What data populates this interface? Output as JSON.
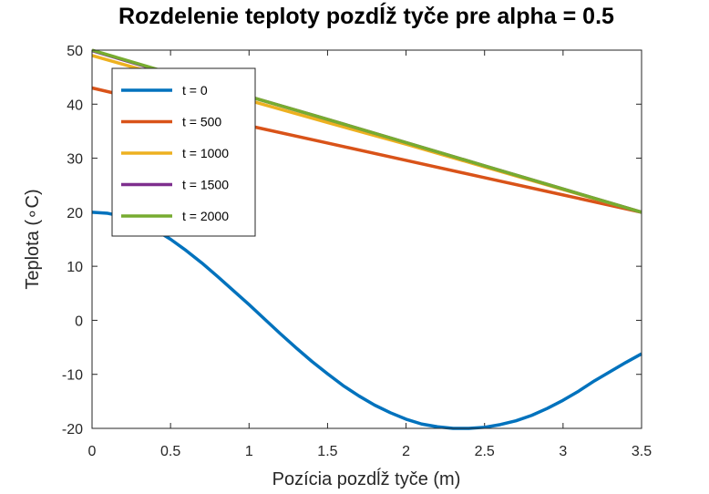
{
  "chart_data": {
    "type": "line",
    "title": "Rozdelenie teploty pozdĺž tyče pre alpha = 0.5",
    "xlabel": "Pozícia pozdĺž tyče (m)",
    "ylabel": "Teplota (∘C)",
    "xlim": [
      0,
      3.5
    ],
    "ylim": [
      -20,
      50
    ],
    "xticks": [
      0,
      0.5,
      1,
      1.5,
      2,
      2.5,
      3,
      3.5
    ],
    "xtick_labels": [
      "0",
      "0.5",
      "1",
      "1.5",
      "2",
      "2.5",
      "3",
      "3.5"
    ],
    "yticks": [
      -20,
      -10,
      0,
      10,
      20,
      30,
      40,
      50
    ],
    "ytick_labels": [
      "-20",
      "-10",
      "0",
      "10",
      "20",
      "30",
      "40",
      "50"
    ],
    "grid": false,
    "legend_position": "top-left",
    "series": [
      {
        "name": "t = 0",
        "color": "#0072BD",
        "x": [
          0,
          0.1,
          0.2,
          0.3,
          0.4,
          0.5,
          0.6,
          0.7,
          0.8,
          0.9,
          1.0,
          1.1,
          1.2,
          1.3,
          1.4,
          1.5,
          1.6,
          1.7,
          1.8,
          1.9,
          2.0,
          2.1,
          2.2,
          2.3,
          2.4,
          2.5,
          2.6,
          2.7,
          2.8,
          2.9,
          3.0,
          3.1,
          3.2,
          3.3,
          3.4,
          3.5
        ],
        "y": [
          20.0,
          19.8,
          19.2,
          18.2,
          16.8,
          15.0,
          12.9,
          10.6,
          8.1,
          5.5,
          2.9,
          0.2,
          -2.5,
          -5.1,
          -7.6,
          -9.9,
          -12.1,
          -14.0,
          -15.7,
          -17.1,
          -18.3,
          -19.2,
          -19.7,
          -20.0,
          -20.0,
          -19.8,
          -19.3,
          -18.6,
          -17.6,
          -16.3,
          -14.8,
          -13.1,
          -11.2,
          -9.5,
          -7.8,
          -6.2
        ]
      },
      {
        "name": "t = 500",
        "color": "#D95319",
        "x": [
          0,
          0.5,
          1,
          1.5,
          2,
          2.5,
          3,
          3.5
        ],
        "y": [
          43.0,
          39.6,
          36.0,
          32.8,
          29.6,
          26.4,
          23.2,
          20.0
        ]
      },
      {
        "name": "t = 1000",
        "color": "#EDB120",
        "x": [
          0,
          0.5,
          1,
          1.5,
          2,
          2.5,
          3,
          3.5
        ],
        "y": [
          49.0,
          44.9,
          40.7,
          36.6,
          32.6,
          28.4,
          24.2,
          20.0
        ]
      },
      {
        "name": "t = 1500",
        "color": "#7E2F8E",
        "x": [
          0,
          0.5,
          1,
          1.5,
          2,
          2.5,
          3,
          3.5
        ],
        "y": [
          49.9,
          45.6,
          41.4,
          37.2,
          32.9,
          28.6,
          24.3,
          20.0
        ]
      },
      {
        "name": "t = 2000",
        "color": "#77AC30",
        "x": [
          0,
          0.5,
          1,
          1.5,
          2,
          2.5,
          3,
          3.5
        ],
        "y": [
          50.0,
          45.7,
          41.4,
          37.2,
          32.9,
          28.6,
          24.3,
          20.0
        ]
      }
    ]
  }
}
